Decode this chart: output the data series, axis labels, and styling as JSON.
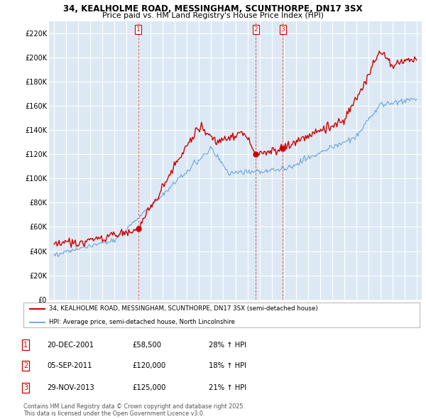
{
  "title1": "34, KEALHOLME ROAD, MESSINGHAM, SCUNTHORPE, DN17 3SX",
  "title2": "Price paid vs. HM Land Registry's House Price Index (HPI)",
  "ylabel_ticks": [
    "£0",
    "£20K",
    "£40K",
    "£60K",
    "£80K",
    "£100K",
    "£120K",
    "£140K",
    "£160K",
    "£180K",
    "£200K",
    "£220K"
  ],
  "ytick_values": [
    0,
    20000,
    40000,
    60000,
    80000,
    100000,
    120000,
    140000,
    160000,
    180000,
    200000,
    220000
  ],
  "ylim": [
    0,
    230000
  ],
  "year_start": 1995,
  "year_end": 2025,
  "bg_color": "#dce9f5",
  "grid_color": "#ffffff",
  "line1_color": "#cc0000",
  "line2_color": "#7aacdb",
  "marker_color": "#cc0000",
  "vline_color": "#cc0000",
  "purchase1_year": 2001.97,
  "purchase1_price": 58500,
  "purchase2_year": 2011.68,
  "purchase2_price": 120000,
  "purchase3_year": 2013.92,
  "purchase3_price": 125000,
  "legend_items": [
    "34, KEALHOLME ROAD, MESSINGHAM, SCUNTHORPE, DN17 3SX (semi-detached house)",
    "HPI: Average price, semi-detached house, North Lincolnshire"
  ],
  "table_rows": [
    [
      "1",
      "20-DEC-2001",
      "£58,500",
      "28% ↑ HPI"
    ],
    [
      "2",
      "05-SEP-2011",
      "£120,000",
      "18% ↑ HPI"
    ],
    [
      "3",
      "29-NOV-2013",
      "£125,000",
      "21% ↑ HPI"
    ]
  ],
  "footnote": "Contains HM Land Registry data © Crown copyright and database right 2025.\nThis data is licensed under the Open Government Licence v3.0.",
  "figsize": [
    6.0,
    5.9
  ],
  "dpi": 100
}
